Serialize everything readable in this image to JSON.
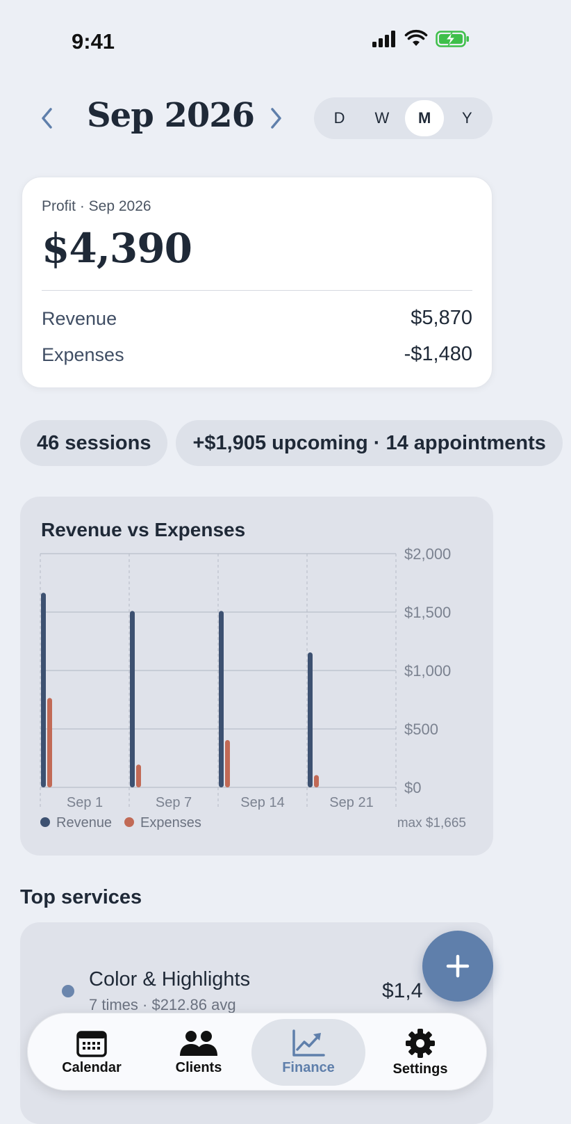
{
  "status_bar": {
    "time": "9:41",
    "icons": [
      "signal-icon",
      "wifi-icon",
      "battery-charging-icon"
    ]
  },
  "header": {
    "month": "Sep 2026",
    "prev_icon": "chevron-left-icon",
    "next_icon": "chevron-right-icon",
    "segments": [
      "D",
      "W",
      "M",
      "Y"
    ],
    "active_segment": "M"
  },
  "profit_card": {
    "label": "Profit · Sep 2026",
    "value": "$4,390",
    "revenue_label": "Revenue",
    "revenue_value": "$5,870",
    "expenses_label": "Expenses",
    "expenses_value": "-$1,480"
  },
  "chips": [
    "46 sessions",
    "+$1,905 upcoming · 14 appointments"
  ],
  "chart_data": {
    "type": "bar",
    "title": "Revenue vs Expenses",
    "categories": [
      "Sep 1",
      "Sep 7",
      "Sep 14",
      "Sep 21"
    ],
    "series": [
      {
        "name": "Revenue",
        "color": "#3d5171",
        "values": [
          1665,
          1510,
          1510,
          1155
        ]
      },
      {
        "name": "Expenses",
        "color": "#c16a56",
        "values": [
          765,
          195,
          405,
          105
        ]
      }
    ],
    "ylim": [
      0,
      2000
    ],
    "y_ticks": [
      2000,
      1500,
      1000,
      500,
      0
    ],
    "y_tick_labels": [
      "$2,000",
      "$1,500",
      "$1,000",
      "$500",
      "$0"
    ],
    "legend_position": "bottom-left",
    "grid": true,
    "annotation": "max $1,665"
  },
  "top_services": {
    "title": "Top services",
    "items": [
      {
        "name": "Color & Highlights",
        "meta": "7 times · $212.86 avg",
        "amount": "$1,4"
      }
    ]
  },
  "fab": {
    "icon": "plus-icon"
  },
  "tabs": [
    {
      "label": "Calendar",
      "icon": "calendar-icon"
    },
    {
      "label": "Clients",
      "icon": "users-icon"
    },
    {
      "label": "Finance",
      "icon": "chart-line-icon"
    },
    {
      "label": "Settings",
      "icon": "gear-icon"
    }
  ],
  "active_tab": "Finance",
  "colors": {
    "accent": "#5f7fab",
    "revenue": "#3d5171",
    "expenses": "#c16a56"
  }
}
